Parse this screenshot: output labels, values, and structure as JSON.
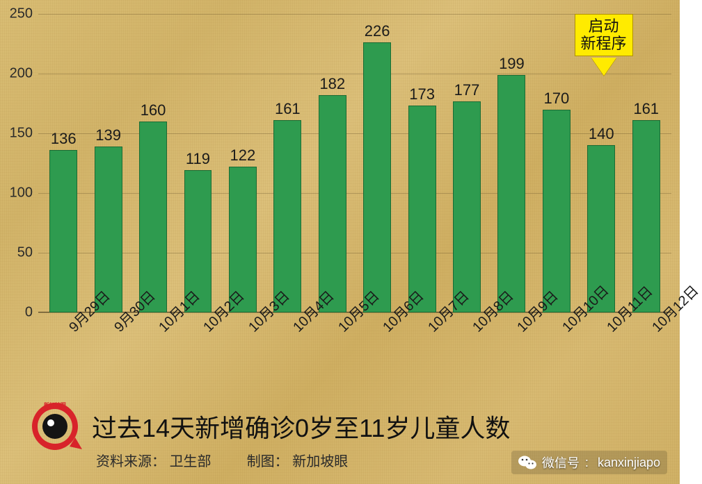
{
  "chart": {
    "type": "bar",
    "background_texture": "papyrus",
    "background_color": "#d6b86f",
    "grid_color": "rgba(100,80,40,0.35)",
    "axis_color": "#5a4a2a",
    "bar_color": "#2e9b4f",
    "bar_border_color": "#1a6b33",
    "bar_width_ratio": 0.62,
    "ylim": [
      0,
      250
    ],
    "ytick_step": 50,
    "yticks": [
      0,
      50,
      100,
      150,
      200,
      250
    ],
    "label_fontsize": 22,
    "tick_fontsize": 20,
    "xlabel_rotation": -45,
    "categories": [
      "9月29日",
      "9月30日",
      "10月1日",
      "10月2日",
      "10月3日",
      "10月4日",
      "10月5日",
      "10月6日",
      "10月7日",
      "10月8日",
      "10月9日",
      "10月10日",
      "10月11日",
      "10月12日"
    ],
    "values": [
      136,
      139,
      160,
      119,
      122,
      161,
      182,
      226,
      173,
      177,
      199,
      170,
      140,
      161
    ]
  },
  "callout": {
    "text_line1": "启动",
    "text_line2": "新程序",
    "box_color": "#ffeb00",
    "border_color": "#b09000",
    "target_index": 12
  },
  "title": "过去14天新增确诊0岁至11岁儿童人数",
  "title_fontsize": 36,
  "source_label": "资料来源：",
  "source_value": "卫生部",
  "maker_label": "制图：",
  "maker_value": "新加坡眼",
  "wechat_label": "微信号",
  "wechat_id": "kanxinjiapo",
  "logo_text": "新加坡眼"
}
